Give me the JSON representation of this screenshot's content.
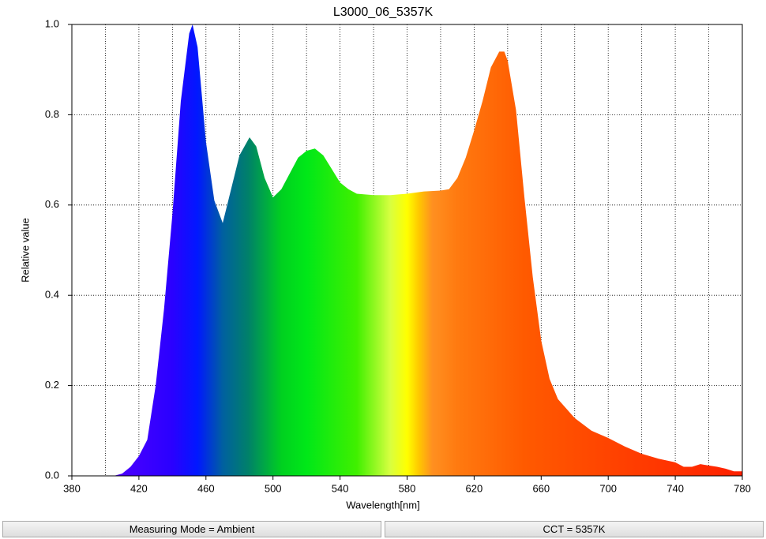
{
  "chart_data": {
    "type": "area",
    "title": "L3000_06_5357K",
    "x_label": "Wavelength[nm]",
    "y_label": "Relative value",
    "x": [
      380,
      390,
      400,
      405,
      410,
      415,
      420,
      425,
      430,
      435,
      440,
      445,
      450,
      452,
      455,
      460,
      465,
      470,
      475,
      480,
      486,
      490,
      495,
      500,
      505,
      510,
      515,
      520,
      525,
      530,
      535,
      540,
      545,
      550,
      560,
      570,
      580,
      590,
      600,
      605,
      610,
      615,
      620,
      625,
      630,
      635,
      638,
      640,
      645,
      650,
      655,
      660,
      665,
      670,
      680,
      690,
      700,
      710,
      720,
      730,
      740,
      745,
      750,
      755,
      760,
      765,
      770,
      775,
      780
    ],
    "values": [
      0,
      0,
      0,
      0,
      0.005,
      0.02,
      0.044,
      0.08,
      0.2,
      0.37,
      0.58,
      0.83,
      0.98,
      1.0,
      0.95,
      0.74,
      0.61,
      0.56,
      0.635,
      0.71,
      0.75,
      0.73,
      0.66,
      0.617,
      0.635,
      0.67,
      0.705,
      0.72,
      0.725,
      0.71,
      0.68,
      0.65,
      0.635,
      0.625,
      0.622,
      0.622,
      0.625,
      0.63,
      0.632,
      0.635,
      0.66,
      0.705,
      0.765,
      0.83,
      0.905,
      0.94,
      0.94,
      0.92,
      0.81,
      0.617,
      0.44,
      0.3,
      0.215,
      0.17,
      0.128,
      0.1,
      0.084,
      0.065,
      0.049,
      0.038,
      0.03,
      0.02,
      0.02,
      0.026,
      0.023,
      0.02,
      0.016,
      0.01,
      0.01
    ],
    "fill_gradient": [
      {
        "x": 380,
        "color": "#6a00ff"
      },
      {
        "x": 440,
        "color": "#2a00ff"
      },
      {
        "x": 455,
        "color": "#0018ff"
      },
      {
        "x": 470,
        "color": "#0060a0"
      },
      {
        "x": 485,
        "color": "#00806a"
      },
      {
        "x": 505,
        "color": "#00d020"
      },
      {
        "x": 520,
        "color": "#00e818"
      },
      {
        "x": 550,
        "color": "#40f000"
      },
      {
        "x": 570,
        "color": "#d8ff40"
      },
      {
        "x": 580,
        "color": "#ffff00"
      },
      {
        "x": 587,
        "color": "#ffc800"
      },
      {
        "x": 595,
        "color": "#ff9020"
      },
      {
        "x": 610,
        "color": "#ff7a10"
      },
      {
        "x": 650,
        "color": "#ff5a00"
      },
      {
        "x": 780,
        "color": "#ff2000"
      }
    ],
    "xlim": [
      380,
      780
    ],
    "ylim": [
      0,
      1
    ],
    "xticks": [
      380,
      420,
      460,
      500,
      540,
      580,
      620,
      660,
      700,
      740,
      780
    ],
    "x_minor_grid": [
      400,
      440,
      480,
      520,
      560,
      600,
      640,
      680,
      720,
      760
    ],
    "yticks": [
      {
        "value": 0,
        "label": "0.0"
      },
      0.2,
      0.4,
      0.6,
      0.8,
      {
        "value": 1,
        "label": "1.0"
      }
    ],
    "grid": true
  },
  "footer": [
    "Measuring Mode = Ambient",
    "CCT = 5357K"
  ]
}
